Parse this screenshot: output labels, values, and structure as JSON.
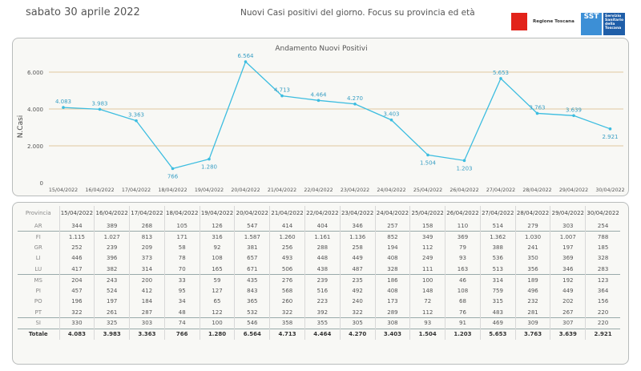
{
  "header": {
    "date": "sabato 30 aprile 2022",
    "title": "Nuovi Casi positivi del giorno. Focus su provincia ed età",
    "logo_regione": "Regione Toscana",
    "logo_sst": "SST",
    "logo_sst_text": "Servizio Sanitario della Toscana"
  },
  "chart_data": {
    "type": "line",
    "title": "Andamento Nuovi Positivi",
    "ylabel": "N.Casi",
    "xlabel": "",
    "ylim": [
      0,
      7000
    ],
    "yticks": [
      0,
      2000,
      4000,
      6000
    ],
    "ytick_labels": [
      "0",
      "2.000",
      "4.000",
      "6.000"
    ],
    "grid": true,
    "color": "#3cbde0",
    "x": [
      "15/04/2022",
      "16/04/2022",
      "17/04/2022",
      "18/04/2022",
      "19/04/2022",
      "20/04/2022",
      "21/04/2022",
      "22/04/2022",
      "23/04/2022",
      "24/04/2022",
      "25/04/2022",
      "26/04/2022",
      "27/04/2022",
      "28/04/2022",
      "29/04/2022",
      "30/04/2022"
    ],
    "values": [
      4083,
      3983,
      3363,
      766,
      1280,
      6564,
      4713,
      4464,
      4270,
      3403,
      1504,
      1203,
      5653,
      3763,
      3639,
      2921
    ],
    "labels": [
      "4.083",
      "3.983",
      "3.363",
      "766",
      "1.280",
      "6.564",
      "4.713",
      "4.464",
      "4.270",
      "3.403",
      "1.504",
      "1.203",
      "5.653",
      "3.763",
      "3.639",
      "2.921"
    ]
  },
  "table": {
    "header": "Provincia",
    "total_label": "Totale",
    "rows": [
      {
        "p": "AR",
        "v": [
          "344",
          "389",
          "268",
          "105",
          "126",
          "547",
          "414",
          "404",
          "346",
          "257",
          "158",
          "110",
          "514",
          "279",
          "303",
          "254"
        ]
      },
      {
        "p": "FI",
        "v": [
          "1.115",
          "1.027",
          "813",
          "171",
          "316",
          "1.587",
          "1.260",
          "1.161",
          "1.136",
          "852",
          "349",
          "369",
          "1.362",
          "1.030",
          "1.007",
          "788"
        ]
      },
      {
        "p": "GR",
        "v": [
          "252",
          "239",
          "209",
          "58",
          "92",
          "381",
          "256",
          "288",
          "258",
          "194",
          "112",
          "79",
          "388",
          "241",
          "197",
          "185"
        ]
      },
      {
        "p": "LI",
        "v": [
          "446",
          "396",
          "373",
          "78",
          "108",
          "657",
          "493",
          "448",
          "449",
          "408",
          "249",
          "93",
          "536",
          "350",
          "369",
          "328"
        ]
      },
      {
        "p": "LU",
        "v": [
          "417",
          "382",
          "314",
          "70",
          "165",
          "671",
          "506",
          "438",
          "487",
          "328",
          "111",
          "163",
          "513",
          "356",
          "346",
          "283"
        ]
      },
      {
        "p": "MS",
        "v": [
          "204",
          "243",
          "200",
          "33",
          "59",
          "435",
          "276",
          "239",
          "235",
          "186",
          "100",
          "46",
          "314",
          "189",
          "192",
          "123"
        ]
      },
      {
        "p": "PI",
        "v": [
          "457",
          "524",
          "412",
          "95",
          "127",
          "843",
          "568",
          "516",
          "492",
          "408",
          "148",
          "108",
          "759",
          "496",
          "449",
          "364"
        ]
      },
      {
        "p": "PO",
        "v": [
          "196",
          "197",
          "184",
          "34",
          "65",
          "365",
          "260",
          "223",
          "240",
          "173",
          "72",
          "68",
          "315",
          "232",
          "202",
          "156"
        ]
      },
      {
        "p": "PT",
        "v": [
          "322",
          "261",
          "287",
          "48",
          "122",
          "532",
          "322",
          "392",
          "322",
          "289",
          "112",
          "76",
          "483",
          "281",
          "267",
          "220"
        ]
      },
      {
        "p": "SI",
        "v": [
          "330",
          "325",
          "303",
          "74",
          "100",
          "546",
          "358",
          "355",
          "305",
          "308",
          "93",
          "91",
          "469",
          "309",
          "307",
          "220"
        ]
      }
    ],
    "totals": [
      "4.083",
      "3.983",
      "3.363",
      "766",
      "1.280",
      "6.564",
      "4.713",
      "4.464",
      "4.270",
      "3.403",
      "1.504",
      "1.203",
      "5.653",
      "3.763",
      "3.639",
      "2.921"
    ]
  }
}
